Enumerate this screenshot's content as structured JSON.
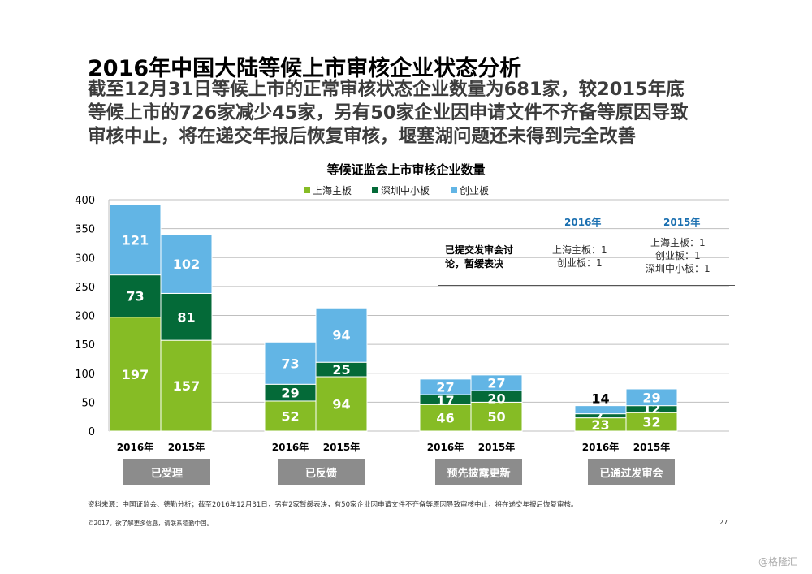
{
  "title": "2016年中国大陆等候上市审核企业状态分析",
  "subtitle_lines": [
    "截至12月31日等候上市的正常审核状态企业数量为681家，较2015年底",
    "等候上市的726家减少45家，另有50家企业因申请文件不齐备等原因导致",
    "审核中止，将在递交年报后恢复审核，堰塞湖问题还未得到完全改善"
  ],
  "chart_data": {
    "type": "bar",
    "stacked": true,
    "title": "等候证监会上市审核企业数量",
    "groups": [
      "已受理",
      "已反馈",
      "预先披露更新",
      "已通过发审会"
    ],
    "bar_labels": [
      "2016年",
      "2015年"
    ],
    "ylim": [
      0,
      400
    ],
    "yticks": [
      0,
      50,
      100,
      150,
      200,
      250,
      300,
      350,
      400
    ],
    "series": [
      {
        "name": "上海主板",
        "color": "#86bc25",
        "values": [
          [
            197,
            157
          ],
          [
            52,
            94
          ],
          [
            46,
            50
          ],
          [
            23,
            32
          ]
        ]
      },
      {
        "name": "深圳中小板",
        "color": "#046a38",
        "values": [
          [
            73,
            81
          ],
          [
            29,
            25
          ],
          [
            17,
            20
          ],
          [
            7,
            12
          ]
        ]
      },
      {
        "name": "创业板",
        "color": "#62b5e5",
        "values": [
          [
            121,
            102
          ],
          [
            73,
            94
          ],
          [
            27,
            27
          ],
          [
            14,
            29
          ]
        ]
      }
    ],
    "legend_position": "top"
  },
  "notes": {
    "col_2016": "2016年",
    "col_2015": "2015年",
    "row_label_line1": "已提交发审会讨",
    "row_label_line2": "论，暂缓表决",
    "cell_2016": [
      "上海主板：1",
      "创业板：1"
    ],
    "cell_2015": [
      "上海主板：1",
      "创业板：1",
      "深圳中小板：1"
    ]
  },
  "colors": {
    "green": "#86bc25",
    "dark_green": "#046a38",
    "blue": "#62b5e5",
    "header_blue": "#1a6fb0",
    "gray_button": "#8c8c8c"
  },
  "footer": {
    "source": "资料来源：中国证监会、德勤分析；截至2016年12月31日，另有2家暂缓表决，有50家企业因申请文件不齐备等原因导致审核中止，将在递交年报后恢复审核。",
    "copyright": "©2017。欲了解更多信息，请联系德勤中国。",
    "page_number": "27",
    "watermark": "@格隆汇"
  }
}
